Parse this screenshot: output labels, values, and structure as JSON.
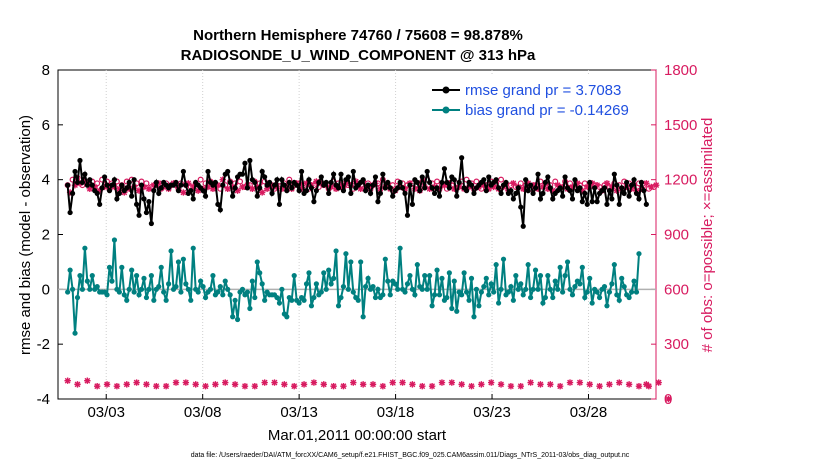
{
  "chart_data": {
    "type": "line",
    "title": [
      "Northern Hemisphere 74760 / 75608 = 98.878%",
      "RADIOSONDE_U_WIND_COMPONENT @ 313 hPa"
    ],
    "xlabel": "Mar.01,2011 00:00:00 start",
    "ylabel_left": "rmse and bias (model - observation)",
    "ylabel_right": "# of obs: o=possible; ×=assimilated",
    "xlim": [
      0.5,
      31.5
    ],
    "ylim_left": [
      -4,
      8
    ],
    "ylim_right": [
      0,
      1800
    ],
    "x_ticks": [
      3,
      8,
      13,
      18,
      23,
      28
    ],
    "x_tick_labels": [
      "03/03",
      "03/08",
      "03/13",
      "03/18",
      "03/23",
      "03/28"
    ],
    "y_left_ticks": [
      "-4",
      "-2",
      "0",
      "2",
      "4",
      "6",
      "8"
    ],
    "y_right_ticks": [
      "0",
      "300",
      "600",
      "900",
      "1200",
      "1500",
      "1800"
    ],
    "legend": [
      "rmse grand pr = 3.7083",
      "bias grand pr = -0.14269"
    ],
    "footnote": "data file: /Users/raeder/DAI/ATM_forcXX/CAM6_setup/f.e21.FHIST_BGC.f09_025.CAM6assim.011/Diags_NTrS_2011-03/obs_diag_output.nc",
    "colors": {
      "rmse": "#000000",
      "bias": "#008080",
      "obs": "#d81b60",
      "legend_text": "#1f4fe0",
      "zero_line": "#b0b0b0"
    },
    "series": [
      {
        "name": "rmse",
        "values": [
          3.8,
          2.8,
          3.5,
          4.3,
          3.9,
          4.7,
          3.9,
          4.2,
          3.8,
          4.0,
          3.8,
          3.6,
          3.5,
          3.1,
          3.7,
          4.1,
          3.8,
          3.6,
          3.8,
          4.0,
          3.3,
          3.5,
          3.8,
          3.6,
          3.7,
          3.9,
          3.4,
          4.0,
          3.1,
          2.7,
          3.8,
          3.3,
          2.8,
          3.2,
          2.4,
          3.6,
          3.9,
          3.5,
          3.7,
          3.9,
          3.8,
          3.7,
          3.8,
          3.8,
          3.9,
          3.6,
          3.8,
          4.3,
          3.8,
          3.5,
          3.6,
          3.3,
          3.9,
          3.8,
          3.7,
          3.6,
          3.4,
          4.3,
          3.9,
          3.8,
          3.9,
          3.1,
          2.9,
          3.8,
          4.2,
          4.3,
          3.9,
          3.4,
          3.7,
          4.1,
          4.2,
          4.2,
          4.6,
          3.7,
          4.7,
          4.0,
          3.9,
          3.4,
          3.7,
          4.3,
          4.1,
          3.8,
          3.9,
          3.5,
          3.8,
          4.0,
          3.1,
          4.0,
          3.8,
          3.6,
          3.9,
          3.7,
          3.9,
          3.8,
          3.6,
          4.3,
          3.5,
          3.6,
          4.0,
          3.7,
          3.2,
          3.6,
          3.9,
          4.1,
          3.8,
          3.9,
          3.5,
          3.9,
          4.2,
          3.8,
          3.7,
          4.2,
          3.6,
          4.0,
          4.1,
          3.5,
          4.3,
          3.7,
          3.8,
          3.9,
          4.0,
          3.6,
          3.8,
          3.5,
          3.8,
          4.1,
          3.2,
          3.5,
          4.2,
          3.7,
          3.9,
          3.7,
          3.4,
          3.6,
          3.7,
          3.9,
          3.7,
          3.5,
          2.7,
          3.8,
          3.1,
          4.0,
          3.9,
          3.6,
          4.1,
          3.7,
          4.3,
          3.9,
          3.7,
          3.5,
          3.7,
          3.4,
          3.9,
          4.4,
          3.9,
          3.7,
          4.1,
          4.0,
          3.4,
          3.9,
          4.8,
          3.7,
          3.6,
          3.9,
          3.8,
          3.5,
          3.7,
          3.8,
          3.9,
          4.0,
          3.6,
          4.1,
          3.8,
          3.9,
          4.0,
          3.7,
          3.5,
          3.8,
          3.9,
          3.5,
          3.6,
          3.3,
          3.5,
          3.7,
          3.0,
          2.3,
          4.0,
          3.6,
          3.8,
          3.5,
          3.7,
          4.2,
          3.3,
          3.5,
          3.9,
          4.1,
          3.7,
          3.3,
          3.5,
          3.6,
          3.7,
          3.4,
          4.1,
          3.7,
          3.6,
          3.3,
          4.0,
          3.6,
          3.7,
          3.2,
          3.5,
          3.1,
          3.9,
          3.2,
          3.7,
          3.2,
          3.5,
          3.6,
          3.7,
          3.1,
          3.6,
          3.3,
          4.2,
          3.8,
          3.1,
          3.7,
          3.5,
          3.9,
          3.4,
          3.8,
          4.0,
          3.5,
          3.3,
          3.9,
          3.6,
          3.1
        ]
      },
      {
        "name": "bias",
        "values": [
          -0.1,
          0.7,
          0.0,
          -1.6,
          -0.3,
          0.5,
          0.0,
          1.5,
          0.3,
          0.0,
          0.5,
          0.0,
          0.1,
          -0.1,
          -0.1,
          -0.1,
          -0.2,
          0.8,
          0.3,
          1.8,
          0.0,
          -0.1,
          0.8,
          -0.2,
          -0.4,
          0.0,
          0.7,
          -0.1,
          0.5,
          -0.2,
          0.0,
          0.4,
          -0.3,
          0.0,
          0.5,
          -0.4,
          0.0,
          0.1,
          0.8,
          -0.1,
          -0.4,
          0.2,
          1.4,
          0.0,
          0.1,
          1.0,
          -0.1,
          1.1,
          0.2,
          0.0,
          -0.4,
          1.5,
          0.0,
          -0.1,
          0.3,
          0.1,
          -0.3,
          -0.1,
          0.0,
          0.5,
          -0.2,
          -0.1,
          0.1,
          -0.2,
          0.3,
          0.0,
          -0.2,
          -1.0,
          -0.4,
          -1.1,
          -0.1,
          0.0,
          -0.2,
          -0.1,
          -0.7,
          0.3,
          -0.3,
          1.0,
          0.6,
          0.2,
          -0.4,
          -0.1,
          -0.2,
          -0.2,
          -0.2,
          -0.3,
          -0.5,
          0.0,
          -0.9,
          -1.0,
          -0.3,
          -0.4,
          0.5,
          -0.4,
          -0.5,
          -0.3,
          -0.4,
          0.2,
          0.6,
          -0.6,
          -0.3,
          0.2,
          -0.2,
          -0.1,
          0.6,
          0.0,
          0.7,
          0.2,
          0.4,
          1.4,
          -0.6,
          -0.3,
          0.1,
          1.3,
          0.0,
          1.0,
          -0.1,
          -0.3,
          -0.4,
          1.0,
          -1.0,
          0.1,
          0.4,
          0.0,
          0.1,
          -0.3,
          0.0,
          -0.3,
          -0.2,
          1.1,
          0.3,
          -0.2,
          0.3,
          0.2,
          0.0,
          1.5,
          0.0,
          -0.1,
          0.2,
          0.5,
          0.0,
          -0.2,
          0.9,
          0.1,
          0.0,
          0.5,
          0.0,
          0.5,
          -0.6,
          -0.2,
          0.7,
          -0.2,
          0.4,
          -0.4,
          -0.3,
          0.6,
          -0.7,
          0.3,
          -0.8,
          -0.1,
          -0.2,
          0.6,
          -0.1,
          -0.4,
          0.4,
          -1.0,
          0.0,
          -0.6,
          -0.1,
          0.1,
          0.4,
          -0.2,
          0.2,
          -0.1,
          0.9,
          -0.5,
          0.0,
          1.1,
          -0.2,
          -0.1,
          0.1,
          -0.4,
          0.5,
          0.0,
          0.2,
          -0.2,
          0.0,
          0.9,
          -0.3,
          0.0,
          0.7,
          0.0,
          0.5,
          -0.5,
          -0.3,
          0.5,
          0.0,
          -0.3,
          0.3,
          0.0,
          0.8,
          -0.1,
          0.5,
          1.0,
          0.0,
          -0.2,
          0.1,
          0.3,
          0.2,
          0.8,
          -0.3,
          -0.1,
          0.4,
          -0.5,
          0.0,
          -0.1,
          -0.3,
          0.0,
          0.1,
          -0.6,
          -0.1,
          0.2,
          0.9,
          -0.2,
          -0.4,
          0.4,
          0.1,
          -0.2,
          -0.3,
          -0.1,
          0.3,
          -0.1,
          1.3
        ]
      },
      {
        "name": "obs_possible",
        "values": [
          1170,
          1140,
          1200,
          1180,
          1210,
          1190,
          1170,
          1200,
          1180,
          1160,
          1190,
          1170,
          1180,
          1150,
          1200,
          1170,
          1190,
          1160,
          1180,
          1170,
          1190,
          1160,
          1170,
          1140,
          1190,
          1160,
          1200,
          1170,
          1180,
          1150,
          1190,
          1170,
          1180,
          1160,
          1160,
          1180,
          1170,
          1190,
          1150,
          1170,
          1180,
          1160,
          1170,
          1190,
          1170,
          1160,
          1180,
          1140,
          1170,
          1190,
          1160,
          1170,
          1180,
          1150,
          1200,
          1160,
          1180,
          1170,
          1190,
          1160,
          1170,
          1180,
          1150,
          1210,
          1170,
          1160,
          1190,
          1170,
          1180,
          1150,
          1190,
          1170,
          1160,
          1180,
          1170,
          1160,
          1190,
          1170,
          1180,
          1140,
          1190,
          1160,
          1170,
          1180,
          1150,
          1170,
          1190,
          1160,
          1180,
          1170,
          1200,
          1160,
          1170,
          1190,
          1180,
          1160,
          1170,
          1190,
          1150,
          1180,
          1170,
          1200,
          1160,
          1190,
          1170,
          1180,
          1150,
          1170,
          1190,
          1160,
          1180,
          1170,
          1160,
          1190,
          1170,
          1180,
          1150,
          1200,
          1170,
          1160,
          1190,
          1170,
          1180,
          1160,
          1170,
          1190,
          1180,
          1160,
          1200,
          1170,
          1180,
          1160,
          1170,
          1150,
          1190,
          1170,
          1180,
          1160,
          1170,
          1190,
          1180,
          1160,
          1170,
          1150,
          1190,
          1170,
          1200,
          1160,
          1180,
          1170,
          1190,
          1160,
          1170,
          1180,
          1150,
          1190,
          1170,
          1160,
          1180,
          1170,
          1190,
          1160,
          1200,
          1170,
          1180,
          1160,
          1190,
          1170,
          1150,
          1180,
          1170,
          1160,
          1190,
          1170,
          1180,
          1160,
          1200,
          1170,
          1180,
          1150,
          1170,
          1190,
          1160,
          1170,
          1180,
          1160,
          1170,
          1190,
          1150,
          1180,
          1170,
          1160,
          1190,
          1170,
          1180,
          1160,
          1170,
          1150,
          1190,
          1180,
          1160,
          1170,
          1190,
          1160,
          1180,
          1170,
          1160,
          1190,
          1170,
          1150,
          1180,
          1170,
          1160,
          1190,
          1170,
          1180,
          1160,
          1150,
          1170,
          1190,
          1160,
          1170,
          1180,
          1150,
          1170,
          1160,
          1190,
          1170,
          1180,
          1160,
          1170,
          1150,
          1180,
          1160,
          1170,
          1190,
          1150,
          1170,
          1160,
          1180
        ]
      },
      {
        "name": "obs_assimilated",
        "values": [
          1160,
          1130,
          1190,
          1170,
          1200,
          1180,
          1160,
          1190,
          1170,
          1150,
          1180,
          1160,
          1170,
          1140,
          1190,
          1160,
          1180,
          1150,
          1170,
          1160,
          1180,
          1150,
          1160,
          1130,
          1180,
          1150,
          1190,
          1160,
          1170,
          1140,
          1180,
          1160,
          1170,
          1150,
          1150,
          1170,
          1160,
          1180,
          1140,
          1160,
          1170,
          1150,
          1160,
          1180,
          1160,
          1150,
          1170,
          1130,
          1160,
          1180,
          1150,
          1160,
          1170,
          1140,
          1190,
          1150,
          1170,
          1160,
          1180,
          1150,
          1160,
          1170,
          1140,
          1200,
          1160,
          1150,
          1180,
          1160,
          1170,
          1140,
          1180,
          1160,
          1150,
          1170,
          1160,
          1150,
          1180,
          1160,
          1170,
          1130,
          1180,
          1150,
          1160,
          1170,
          1140,
          1160,
          1180,
          1150,
          1170,
          1160,
          1190,
          1150,
          1160,
          1180,
          1170,
          1150,
          1160,
          1180,
          1140,
          1170,
          1160,
          1190,
          1150,
          1180,
          1160,
          1170,
          1140,
          1160,
          1180,
          1150,
          1170,
          1160,
          1150,
          1180,
          1160,
          1170,
          1140,
          1190,
          1160,
          1150,
          1180,
          1160,
          1170,
          1150,
          1160,
          1180,
          1170,
          1150,
          1190,
          1160,
          1170,
          1150,
          1160,
          1140,
          1180,
          1160,
          1170,
          1150,
          1160,
          1180,
          1170,
          1150,
          1160,
          1140,
          1180,
          1160,
          1190,
          1150,
          1170,
          1160,
          1180,
          1150,
          1160,
          1170,
          1140,
          1180,
          1160,
          1150,
          1170,
          1160,
          1180,
          1150,
          1190,
          1160,
          1170,
          1150,
          1180,
          1160,
          1140,
          1170,
          1160,
          1150,
          1180,
          1160,
          1170,
          1150,
          1190,
          1160,
          1170,
          1140,
          1160,
          1180,
          1150,
          1160,
          1170,
          1150,
          1160,
          1180,
          1140,
          1170,
          1160,
          1150,
          1180,
          1160,
          1170,
          1150,
          1160,
          1140,
          1180,
          1170,
          1150,
          1160,
          1180,
          1150,
          1170,
          1160,
          1150,
          1180,
          1160,
          1140,
          1170,
          1160,
          1150,
          1180,
          1160,
          1170,
          1150,
          1140,
          1160,
          1180,
          1150,
          1160,
          1170,
          1140,
          1160,
          1150,
          1180,
          1160,
          1170,
          1150,
          1160,
          1140,
          1170,
          1150,
          1160,
          1180,
          1140,
          1160,
          1150,
          1170
        ]
      },
      {
        "name": "obs_bottom",
        "values": [
          100,
          80,
          90,
          70,
          80,
          70,
          90,
          80,
          100,
          70,
          80,
          90,
          70,
          80,
          100,
          90,
          80,
          70,
          90,
          80,
          70,
          80,
          90,
          70,
          80,
          90,
          70,
          80,
          90,
          80,
          70,
          90,
          80,
          100,
          90,
          80,
          70,
          80,
          90,
          80,
          70,
          90,
          80,
          100,
          90,
          110,
          80,
          70,
          90,
          80,
          70,
          90,
          80,
          70,
          90,
          80,
          70,
          90,
          80,
          70,
          80,
          90,
          80,
          70,
          90,
          80,
          70,
          90,
          80,
          70,
          90,
          80,
          70,
          80,
          90,
          80,
          70,
          90,
          80,
          70,
          90,
          80,
          70,
          80,
          90,
          80,
          70,
          90,
          80,
          70,
          90,
          80,
          70,
          90,
          80,
          70,
          80,
          90,
          80,
          70,
          90,
          80,
          70,
          90,
          80,
          70,
          90,
          80,
          70,
          80,
          90,
          80,
          70,
          90,
          80,
          70,
          90,
          80,
          70,
          90,
          80,
          70,
          80,
          90,
          80,
          70,
          90,
          80,
          70,
          90,
          80,
          70,
          90,
          80,
          70,
          80,
          90,
          80,
          70,
          90,
          80,
          70,
          90,
          80,
          70,
          90,
          100,
          80,
          70,
          90,
          80,
          70,
          90,
          80,
          70,
          80,
          90,
          80,
          70,
          90,
          80,
          70,
          90,
          80,
          70,
          90,
          80,
          70,
          80,
          90,
          80,
          70,
          90,
          80,
          70,
          90,
          80,
          70,
          90,
          80,
          70,
          80,
          90,
          80,
          70,
          90,
          80,
          70,
          90,
          80,
          70,
          90,
          80,
          70,
          80,
          90,
          80,
          70,
          90,
          80,
          70,
          90,
          80,
          70,
          90,
          80,
          70,
          80,
          90,
          80,
          70,
          90,
          80,
          70,
          90,
          80,
          70,
          90,
          80,
          70,
          80,
          90,
          80,
          70,
          90,
          80,
          70,
          90,
          80,
          70,
          90,
          80,
          70,
          80,
          90,
          80,
          70,
          90,
          80,
          70,
          90,
          80,
          70,
          90,
          0
        ]
      }
    ]
  }
}
